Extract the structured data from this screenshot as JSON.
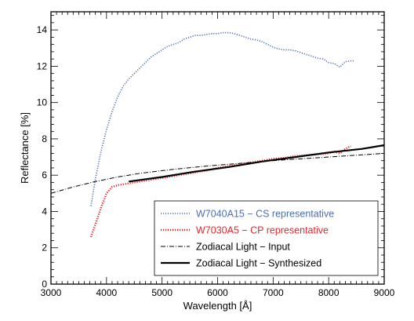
{
  "chart_data": {
    "type": "line",
    "title": "",
    "xlabel": "Wavelength [Å]",
    "ylabel": "Reflectance [%]",
    "xlim": [
      3000,
      9000
    ],
    "ylim": [
      0,
      15
    ],
    "xticks": [
      3000,
      4000,
      5000,
      6000,
      7000,
      8000,
      9000
    ],
    "yticks": [
      0,
      2,
      4,
      6,
      8,
      10,
      12,
      14
    ],
    "legend_position": "bottom-right",
    "grid": false,
    "series": [
      {
        "name": "W7040A15 − CS representative",
        "color": "#4a6fb5",
        "style": "dotted",
        "x": [
          3720,
          3800,
          3900,
          4000,
          4100,
          4200,
          4300,
          4400,
          4500,
          4600,
          4700,
          4800,
          4900,
          5000,
          5100,
          5200,
          5300,
          5400,
          5500,
          5600,
          5700,
          5800,
          5900,
          6000,
          6100,
          6200,
          6300,
          6400,
          6500,
          6600,
          6700,
          6800,
          6900,
          7000,
          7100,
          7200,
          7300,
          7400,
          7500,
          7600,
          7700,
          7800,
          7900,
          8000,
          8100,
          8200,
          8300,
          8400,
          8450
        ],
        "y": [
          4.3,
          5.8,
          7.3,
          8.5,
          9.5,
          10.3,
          10.9,
          11.3,
          11.6,
          11.9,
          12.2,
          12.5,
          12.7,
          12.9,
          13.1,
          13.2,
          13.3,
          13.5,
          13.6,
          13.7,
          13.7,
          13.75,
          13.8,
          13.8,
          13.85,
          13.85,
          13.8,
          13.7,
          13.6,
          13.5,
          13.45,
          13.35,
          13.2,
          13.05,
          12.95,
          12.9,
          12.9,
          12.85,
          12.75,
          12.65,
          12.55,
          12.45,
          12.4,
          12.2,
          12.15,
          11.95,
          12.25,
          12.3,
          12.3
        ]
      },
      {
        "name": "W7030A5 − CP representative",
        "color": "#e8262b",
        "style": "dotted",
        "x": [
          3720,
          3800,
          3900,
          4000,
          4100,
          4200,
          4300,
          4400,
          4500,
          4600,
          4700,
          4800,
          4900,
          5000,
          5200,
          5400,
          5600,
          5800,
          6000,
          6200,
          6400,
          6600,
          6800,
          7000,
          7200,
          7400,
          7600,
          7800,
          8000,
          8100,
          8200,
          8300,
          8400
        ],
        "y": [
          2.6,
          3.3,
          4.2,
          5.0,
          5.35,
          5.45,
          5.5,
          5.55,
          5.6,
          5.65,
          5.7,
          5.75,
          5.8,
          5.85,
          5.95,
          6.05,
          6.15,
          6.25,
          6.4,
          6.5,
          6.6,
          6.7,
          6.8,
          6.9,
          6.95,
          7.05,
          7.1,
          7.15,
          7.2,
          7.3,
          7.2,
          7.45,
          7.6
        ]
      },
      {
        "name": "Zodiacal Light − Input",
        "color": "#000000",
        "style": "dashdot",
        "x": [
          3000,
          3400,
          3800,
          4200,
          4600,
          5000,
          5400,
          5800,
          6200,
          6600,
          7000,
          7400,
          7800,
          8200,
          8600,
          9000
        ],
        "y": [
          5.0,
          5.35,
          5.65,
          5.9,
          6.1,
          6.25,
          6.38,
          6.5,
          6.6,
          6.7,
          6.8,
          6.88,
          6.96,
          7.04,
          7.12,
          7.2
        ]
      },
      {
        "name": "Zodiacal Light − Synthesized",
        "color": "#000000",
        "style": "solid",
        "x": [
          4400,
          5000,
          5600,
          6200,
          6800,
          7400,
          8000,
          8600,
          9000
        ],
        "y": [
          5.65,
          5.9,
          6.2,
          6.45,
          6.75,
          7.0,
          7.25,
          7.45,
          7.65
        ]
      }
    ]
  }
}
